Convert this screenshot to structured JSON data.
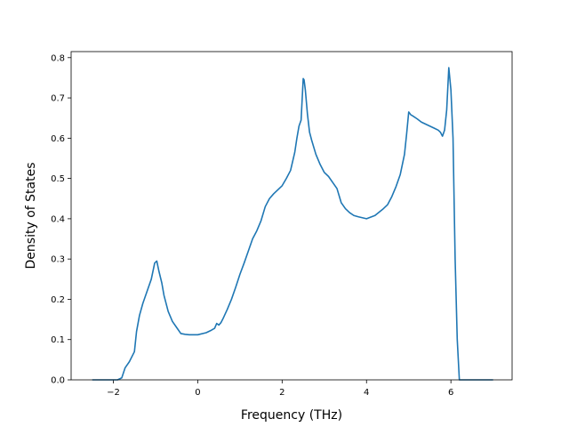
{
  "chart_data": {
    "type": "line",
    "title": "",
    "xlabel": "Frequency (THz)",
    "ylabel": "Density of States",
    "xlim": [
      -3.0,
      7.45
    ],
    "ylim": [
      0.0,
      0.815
    ],
    "grid": false,
    "colors": {
      "line": "#1f77b4",
      "axes": "#000000",
      "background": "#ffffff"
    },
    "x_ticks": [
      {
        "value": -2,
        "label": "−2"
      },
      {
        "value": 0,
        "label": "0"
      },
      {
        "value": 2,
        "label": "2"
      },
      {
        "value": 4,
        "label": "4"
      },
      {
        "value": 6,
        "label": "6"
      }
    ],
    "y_ticks": [
      {
        "value": 0.0,
        "label": "0.0"
      },
      {
        "value": 0.1,
        "label": "0.1"
      },
      {
        "value": 0.2,
        "label": "0.2"
      },
      {
        "value": 0.3,
        "label": "0.3"
      },
      {
        "value": 0.4,
        "label": "0.4"
      },
      {
        "value": 0.5,
        "label": "0.5"
      },
      {
        "value": 0.6,
        "label": "0.6"
      },
      {
        "value": 0.7,
        "label": "0.7"
      },
      {
        "value": 0.8,
        "label": "0.8"
      }
    ],
    "series": [
      {
        "x": [
          -2.5,
          -1.9,
          -1.8,
          -1.72,
          -1.62,
          -1.5,
          -1.45,
          -1.38,
          -1.3,
          -1.2,
          -1.1,
          -1.02,
          -0.97,
          -0.92,
          -0.85,
          -0.8,
          -0.7,
          -0.6,
          -0.5,
          -0.4,
          -0.3,
          -0.2,
          0.0,
          0.2,
          0.3,
          0.4,
          0.45,
          0.5,
          0.55,
          0.6,
          0.7,
          0.8,
          0.9,
          1.0,
          1.1,
          1.2,
          1.3,
          1.4,
          1.5,
          1.6,
          1.7,
          1.8,
          1.9,
          2.0,
          2.1,
          2.2,
          2.3,
          2.35,
          2.4,
          2.45,
          2.5,
          2.52,
          2.55,
          2.6,
          2.65,
          2.7,
          2.8,
          2.9,
          3.0,
          3.1,
          3.2,
          3.3,
          3.4,
          3.5,
          3.6,
          3.7,
          3.8,
          4.0,
          4.2,
          4.4,
          4.5,
          4.6,
          4.7,
          4.8,
          4.9,
          4.95,
          5.0,
          5.05,
          5.1,
          5.2,
          5.3,
          5.4,
          5.5,
          5.6,
          5.7,
          5.75,
          5.8,
          5.85,
          5.9,
          5.95,
          6.0,
          6.05,
          6.1,
          6.15,
          6.2,
          6.3,
          6.5,
          7.0
        ],
        "y": [
          0.0,
          0.0,
          0.005,
          0.03,
          0.045,
          0.07,
          0.12,
          0.16,
          0.19,
          0.22,
          0.25,
          0.29,
          0.295,
          0.27,
          0.24,
          0.21,
          0.17,
          0.145,
          0.13,
          0.115,
          0.113,
          0.112,
          0.112,
          0.117,
          0.122,
          0.128,
          0.14,
          0.136,
          0.142,
          0.152,
          0.175,
          0.2,
          0.23,
          0.262,
          0.29,
          0.32,
          0.35,
          0.37,
          0.395,
          0.43,
          0.45,
          0.462,
          0.472,
          0.482,
          0.5,
          0.52,
          0.565,
          0.6,
          0.63,
          0.645,
          0.748,
          0.745,
          0.72,
          0.66,
          0.615,
          0.595,
          0.56,
          0.535,
          0.515,
          0.505,
          0.49,
          0.475,
          0.44,
          0.425,
          0.415,
          0.408,
          0.405,
          0.4,
          0.408,
          0.425,
          0.435,
          0.455,
          0.48,
          0.51,
          0.56,
          0.61,
          0.665,
          0.658,
          0.655,
          0.648,
          0.64,
          0.635,
          0.63,
          0.625,
          0.62,
          0.615,
          0.605,
          0.62,
          0.67,
          0.775,
          0.72,
          0.6,
          0.3,
          0.1,
          0.0,
          0.0,
          0.0,
          0.0
        ]
      }
    ]
  }
}
